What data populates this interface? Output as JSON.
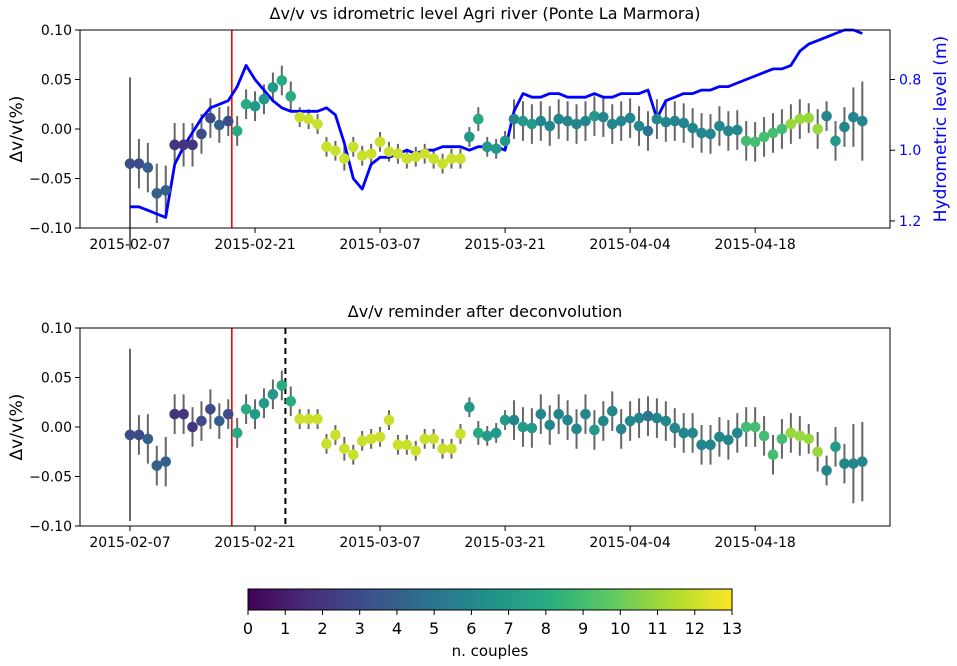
{
  "chart_data": [
    {
      "type": "scatter",
      "title": "Δv/v vs idrometric level Agri river (Ponte La Marmora)",
      "xlabel": "",
      "ylabel": "Δv/v(%)",
      "y2label": "Hydrometric  level (m)",
      "ylim": [
        -0.1,
        0.1
      ],
      "y2lim": [
        1.22,
        0.66
      ],
      "y2_inverted": true,
      "xticks": [
        "2015-02-07",
        "2015-02-21",
        "2015-03-07",
        "2015-03-21",
        "2015-04-04",
        "2015-04-18"
      ],
      "yticks": [
        "0.10",
        "0.05",
        "0.00",
        "−0.05",
        "−0.10"
      ],
      "y2ticks": [
        "0.8",
        "1.0",
        "1.2"
      ],
      "red_line_day": 11.4,
      "series": [
        {
          "color": "#0000ff",
          "x": [
            0,
            1,
            2,
            3,
            4,
            5,
            6,
            7,
            8,
            9,
            10,
            11,
            12,
            13,
            14,
            15,
            16,
            17,
            18,
            19,
            20,
            21,
            22,
            23,
            24,
            25,
            26,
            27,
            28,
            29,
            30,
            31,
            32,
            33,
            34,
            35,
            36,
            37,
            38,
            39,
            40,
            41,
            42,
            43,
            44,
            45,
            46,
            47,
            48,
            49,
            50,
            51,
            52,
            53,
            54,
            55,
            56,
            57,
            58,
            59,
            60,
            61,
            62,
            63,
            64,
            65,
            66,
            67,
            68,
            69,
            70,
            71,
            72,
            73,
            74,
            75,
            76,
            77,
            78,
            79,
            80,
            81,
            82
          ],
          "values": [
            1.16,
            1.16,
            1.17,
            1.18,
            1.19,
            1.04,
            0.99,
            0.95,
            0.91,
            0.88,
            0.87,
            0.86,
            0.82,
            0.76,
            0.8,
            0.83,
            0.86,
            0.88,
            0.89,
            0.89,
            0.89,
            0.89,
            0.88,
            0.9,
            0.98,
            1.08,
            1.11,
            1.04,
            1.02,
            1.02,
            1.01,
            1.0,
            1.01,
            1.0,
            1.0,
            0.99,
            0.99,
            0.99,
            1.0,
            0.99,
            0.99,
            0.99,
            1.0,
            0.89,
            0.84,
            0.85,
            0.85,
            0.84,
            0.84,
            0.85,
            0.85,
            0.85,
            0.84,
            0.85,
            0.85,
            0.84,
            0.84,
            0.84,
            0.83,
            0.91,
            0.86,
            0.85,
            0.84,
            0.84,
            0.83,
            0.83,
            0.82,
            0.82,
            0.81,
            0.8,
            0.79,
            0.78,
            0.77,
            0.77,
            0.76,
            0.72,
            0.7,
            0.69,
            0.68,
            0.67,
            0.66,
            0.66,
            0.67
          ]
        },
        {
          "x": [
            0,
            1,
            2,
            3,
            4,
            5,
            6,
            7,
            8,
            9,
            10,
            11,
            12,
            13,
            14,
            15,
            16,
            17,
            18,
            19,
            20,
            21,
            22,
            23,
            24,
            25,
            26,
            27,
            28,
            29,
            30,
            31,
            32,
            33,
            34,
            35,
            36,
            37,
            38,
            39,
            40,
            41,
            42,
            43,
            44,
            45,
            46,
            47,
            48,
            49,
            50,
            51,
            52,
            53,
            54,
            55,
            56,
            57,
            58,
            59,
            60,
            61,
            62,
            63,
            64,
            65,
            66,
            67,
            68,
            69,
            70,
            71,
            72,
            73,
            74,
            75,
            76,
            77,
            78,
            79,
            80,
            81,
            82
          ],
          "values": [
            -0.035,
            -0.035,
            -0.039,
            -0.065,
            -0.062,
            -0.016,
            -0.016,
            -0.016,
            -0.005,
            0.011,
            0.004,
            0.008,
            -0.002,
            0.025,
            0.023,
            0.03,
            0.042,
            0.049,
            0.033,
            0.012,
            0.01,
            0.005,
            -0.018,
            -0.022,
            -0.03,
            -0.018,
            -0.027,
            -0.025,
            -0.013,
            -0.023,
            -0.025,
            -0.03,
            -0.028,
            -0.025,
            -0.03,
            -0.035,
            -0.03,
            -0.03,
            -0.008,
            0.01,
            -0.018,
            -0.02,
            -0.012,
            0.01,
            0.008,
            0.005,
            0.008,
            0.003,
            0.01,
            0.008,
            0.005,
            0.008,
            0.013,
            0.012,
            0.005,
            0.008,
            0.011,
            0.003,
            -0.002,
            0.01,
            0.007,
            0.008,
            0.006,
            0.001,
            -0.004,
            -0.005,
            0.003,
            -0.002,
            -0.001,
            -0.012,
            -0.013,
            -0.008,
            -0.004,
            0.0,
            0.005,
            0.01,
            0.011,
            0.0,
            0.013,
            -0.012,
            0.002,
            0.012,
            0.008
          ],
          "errors": [
            0.087,
            0.025,
            0.025,
            0.03,
            0.025,
            0.022,
            0.022,
            0.022,
            0.02,
            0.02,
            0.018,
            0.015,
            0.015,
            0.015,
            0.015,
            0.015,
            0.015,
            0.015,
            0.015,
            0.01,
            0.01,
            0.01,
            0.01,
            0.01,
            0.012,
            0.01,
            0.01,
            0.01,
            0.01,
            0.01,
            0.01,
            0.01,
            0.01,
            0.01,
            0.01,
            0.01,
            0.01,
            0.01,
            0.01,
            0.012,
            0.01,
            0.01,
            0.01,
            0.02,
            0.02,
            0.02,
            0.02,
            0.02,
            0.02,
            0.02,
            0.02,
            0.02,
            0.02,
            0.02,
            0.02,
            0.02,
            0.02,
            0.02,
            0.02,
            0.02,
            0.02,
            0.02,
            0.02,
            0.02,
            0.02,
            0.02,
            0.02,
            0.02,
            0.02,
            0.02,
            0.02,
            0.02,
            0.02,
            0.02,
            0.02,
            0.02,
            0.015,
            0.02,
            0.015,
            0.02,
            0.02,
            0.03,
            0.04
          ],
          "couples": [
            3,
            3,
            4,
            4,
            4,
            2,
            2,
            2,
            3,
            3,
            4,
            3,
            8,
            8,
            7,
            7,
            7,
            8,
            8,
            12,
            12,
            12,
            12,
            12,
            12,
            12,
            12,
            12,
            12,
            12,
            12,
            12,
            12,
            12,
            12,
            12,
            12,
            12,
            7,
            8,
            7,
            7,
            7,
            6,
            7,
            7,
            6,
            6,
            6,
            6,
            6,
            6,
            7,
            6,
            6,
            6,
            6,
            6,
            5,
            6,
            6,
            6,
            6,
            6,
            6,
            6,
            6,
            6,
            6,
            9,
            9,
            9,
            9,
            9,
            11,
            11,
            11,
            11,
            6,
            7,
            6,
            6,
            6
          ]
        }
      ]
    },
    {
      "type": "scatter",
      "title": "Δv/v reminder after deconvolution",
      "xlabel": "",
      "ylabel": "Δv/v(%)",
      "ylim": [
        -0.1,
        0.1
      ],
      "xticks": [
        "2015-02-07",
        "2015-02-21",
        "2015-03-07",
        "2015-03-21",
        "2015-04-04",
        "2015-04-18"
      ],
      "yticks": [
        "0.10",
        "0.05",
        "0.00",
        "−0.05",
        "−0.10"
      ],
      "red_line_day": 11.4,
      "dashed_line_day": 17.4,
      "series": [
        {
          "x": [
            0,
            1,
            2,
            3,
            4,
            5,
            6,
            7,
            8,
            9,
            10,
            11,
            12,
            13,
            14,
            15,
            16,
            17,
            18,
            19,
            20,
            21,
            22,
            23,
            24,
            25,
            26,
            27,
            28,
            29,
            30,
            31,
            32,
            33,
            34,
            35,
            36,
            37,
            38,
            39,
            40,
            41,
            42,
            43,
            44,
            45,
            46,
            47,
            48,
            49,
            50,
            51,
            52,
            53,
            54,
            55,
            56,
            57,
            58,
            59,
            60,
            61,
            62,
            63,
            64,
            65,
            66,
            67,
            68,
            69,
            70,
            71,
            72,
            73,
            74,
            75,
            76,
            77,
            78,
            79,
            80,
            81,
            82
          ],
          "values": [
            -0.008,
            -0.008,
            -0.012,
            -0.039,
            -0.035,
            0.013,
            0.013,
            0.0,
            0.006,
            0.018,
            0.006,
            0.013,
            -0.006,
            0.018,
            0.013,
            0.024,
            0.033,
            0.042,
            0.026,
            0.008,
            0.008,
            0.008,
            -0.017,
            -0.008,
            -0.022,
            -0.028,
            -0.014,
            -0.012,
            -0.01,
            0.007,
            -0.018,
            -0.018,
            -0.024,
            -0.012,
            -0.012,
            -0.022,
            -0.022,
            -0.007,
            0.02,
            -0.006,
            -0.009,
            -0.006,
            0.007,
            0.007,
            0.0,
            -0.001,
            0.013,
            0.002,
            0.013,
            0.007,
            -0.002,
            0.013,
            -0.003,
            0.006,
            0.016,
            -0.002,
            0.006,
            0.009,
            0.011,
            0.009,
            0.006,
            -0.001,
            -0.006,
            -0.006,
            -0.018,
            -0.018,
            -0.01,
            -0.013,
            -0.006,
            0.0,
            0.0,
            -0.009,
            -0.028,
            -0.012,
            -0.006,
            -0.009,
            -0.012,
            -0.025,
            -0.044,
            -0.02,
            -0.037,
            -0.037,
            -0.035
          ],
          "errors": [
            0.087,
            0.02,
            0.025,
            0.02,
            0.025,
            0.02,
            0.02,
            0.02,
            0.02,
            0.02,
            0.018,
            0.015,
            0.015,
            0.015,
            0.015,
            0.015,
            0.015,
            0.015,
            0.015,
            0.01,
            0.01,
            0.01,
            0.01,
            0.01,
            0.012,
            0.01,
            0.01,
            0.01,
            0.01,
            0.01,
            0.01,
            0.01,
            0.01,
            0.01,
            0.01,
            0.01,
            0.01,
            0.01,
            0.01,
            0.012,
            0.01,
            0.01,
            0.01,
            0.02,
            0.02,
            0.02,
            0.02,
            0.02,
            0.02,
            0.02,
            0.02,
            0.02,
            0.02,
            0.02,
            0.02,
            0.02,
            0.02,
            0.02,
            0.02,
            0.02,
            0.02,
            0.02,
            0.02,
            0.02,
            0.02,
            0.02,
            0.02,
            0.02,
            0.02,
            0.02,
            0.02,
            0.02,
            0.02,
            0.02,
            0.02,
            0.02,
            0.015,
            0.02,
            0.015,
            0.02,
            0.02,
            0.04,
            0.04
          ],
          "couples": [
            3,
            3,
            4,
            4,
            4,
            2,
            2,
            2,
            3,
            3,
            4,
            3,
            8,
            8,
            7,
            7,
            7,
            8,
            8,
            12,
            12,
            12,
            12,
            12,
            12,
            12,
            12,
            12,
            12,
            12,
            12,
            12,
            12,
            12,
            12,
            12,
            12,
            12,
            7,
            8,
            7,
            7,
            7,
            6,
            7,
            7,
            6,
            6,
            6,
            6,
            6,
            6,
            7,
            6,
            6,
            6,
            6,
            6,
            5,
            6,
            6,
            6,
            6,
            6,
            6,
            6,
            6,
            6,
            6,
            9,
            9,
            9,
            9,
            9,
            11,
            11,
            11,
            11,
            6,
            7,
            6,
            6,
            6
          ]
        }
      ]
    }
  ],
  "colorbar": {
    "label": "n. couples",
    "min": 0,
    "max": 13,
    "ticks": [
      "0",
      "1",
      "2",
      "3",
      "4",
      "5",
      "6",
      "7",
      "8",
      "9",
      "10",
      "11",
      "12",
      "13"
    ],
    "colormap": "viridis"
  },
  "colors": {
    "hydrometric_line": "#0000ff",
    "event_line": "#ff0000",
    "dashed_line": "#000000",
    "errorbar": "#666666"
  }
}
